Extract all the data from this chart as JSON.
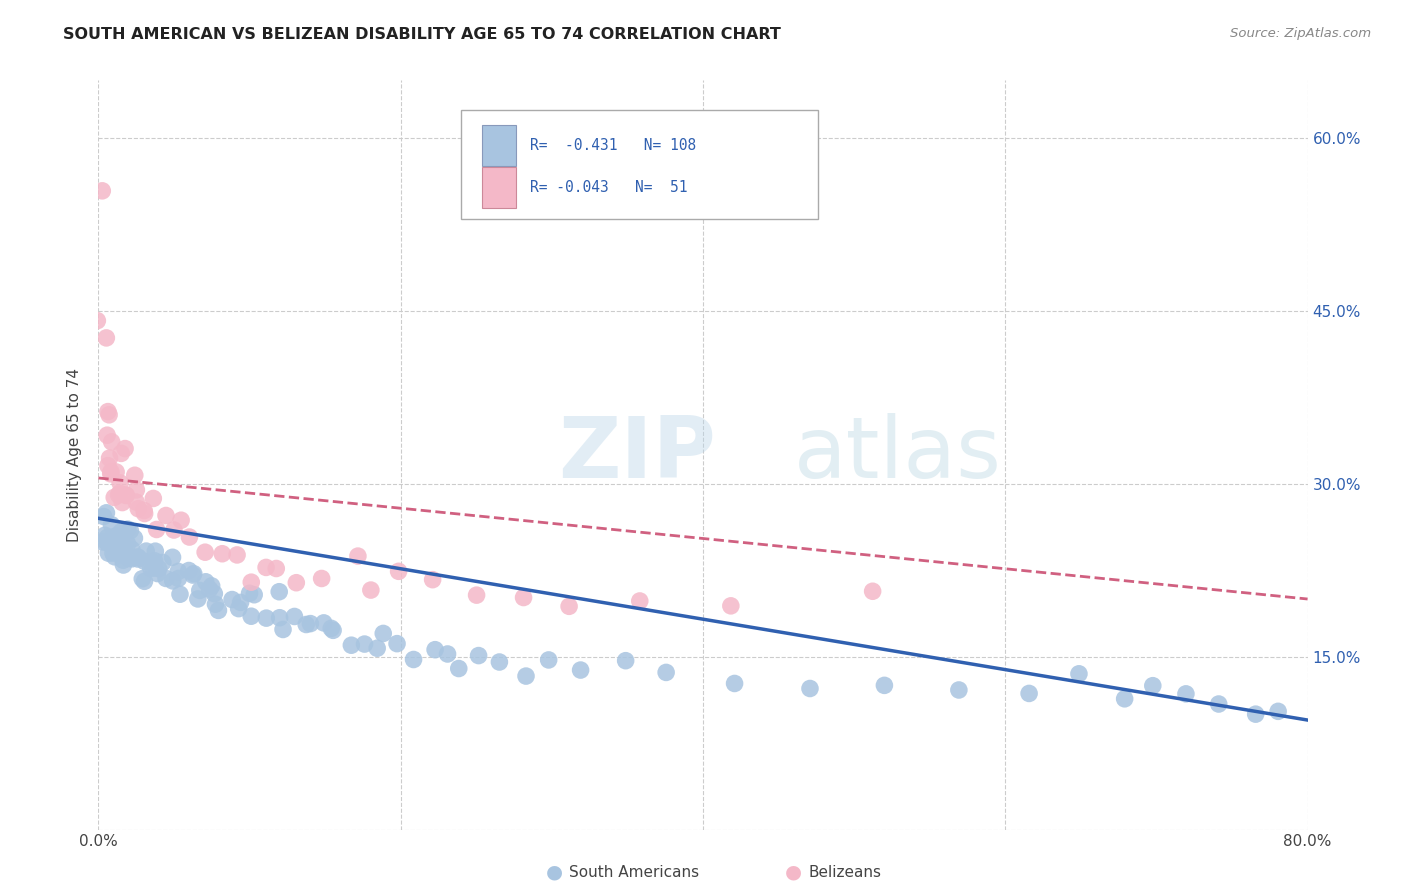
{
  "title": "SOUTH AMERICAN VS BELIZEAN DISABILITY AGE 65 TO 74 CORRELATION CHART",
  "source": "Source: ZipAtlas.com",
  "ylabel": "Disability Age 65 to 74",
  "xlim": [
    0.0,
    0.8
  ],
  "ylim": [
    0.0,
    0.65
  ],
  "y_ticks": [
    0.0,
    0.15,
    0.3,
    0.45,
    0.6
  ],
  "y_tick_labels_right": [
    "",
    "15.0%",
    "30.0%",
    "45.0%",
    "60.0%"
  ],
  "grid_color": "#cccccc",
  "background_color": "#ffffff",
  "sa_color": "#a8c4e0",
  "bz_color": "#f4b8c8",
  "trendline_sa_color": "#3060b0",
  "trendline_bz_color": "#d06080",
  "r_sa": -0.431,
  "n_sa": 108,
  "r_bz": -0.043,
  "n_bz": 51,
  "watermark_zip": "ZIP",
  "watermark_atlas": "atlas",
  "legend_sa_label": "South Americans",
  "legend_bz_label": "Belizeans",
  "sa_x": [
    0.002,
    0.003,
    0.004,
    0.005,
    0.005,
    0.006,
    0.007,
    0.007,
    0.008,
    0.009,
    0.01,
    0.01,
    0.011,
    0.011,
    0.012,
    0.012,
    0.013,
    0.014,
    0.014,
    0.015,
    0.015,
    0.016,
    0.017,
    0.017,
    0.018,
    0.019,
    0.02,
    0.02,
    0.022,
    0.023,
    0.024,
    0.025,
    0.026,
    0.027,
    0.028,
    0.03,
    0.031,
    0.032,
    0.033,
    0.034,
    0.035,
    0.036,
    0.038,
    0.04,
    0.041,
    0.042,
    0.044,
    0.046,
    0.048,
    0.05,
    0.052,
    0.054,
    0.056,
    0.058,
    0.06,
    0.063,
    0.065,
    0.068,
    0.07,
    0.072,
    0.075,
    0.078,
    0.08,
    0.083,
    0.086,
    0.09,
    0.093,
    0.097,
    0.1,
    0.105,
    0.11,
    0.115,
    0.12,
    0.125,
    0.13,
    0.135,
    0.14,
    0.15,
    0.155,
    0.16,
    0.168,
    0.175,
    0.18,
    0.19,
    0.2,
    0.21,
    0.22,
    0.23,
    0.24,
    0.25,
    0.265,
    0.28,
    0.3,
    0.32,
    0.35,
    0.38,
    0.42,
    0.47,
    0.52,
    0.57,
    0.62,
    0.65,
    0.68,
    0.7,
    0.72,
    0.74,
    0.76,
    0.78
  ],
  "sa_y": [
    0.27,
    0.25,
    0.265,
    0.24,
    0.255,
    0.26,
    0.245,
    0.25,
    0.24,
    0.255,
    0.245,
    0.26,
    0.25,
    0.255,
    0.24,
    0.26,
    0.25,
    0.245,
    0.255,
    0.24,
    0.26,
    0.245,
    0.255,
    0.25,
    0.24,
    0.245,
    0.235,
    0.25,
    0.24,
    0.245,
    0.23,
    0.24,
    0.235,
    0.245,
    0.225,
    0.235,
    0.24,
    0.23,
    0.225,
    0.235,
    0.23,
    0.225,
    0.24,
    0.22,
    0.235,
    0.225,
    0.23,
    0.22,
    0.225,
    0.215,
    0.225,
    0.22,
    0.21,
    0.22,
    0.215,
    0.205,
    0.215,
    0.205,
    0.21,
    0.2,
    0.21,
    0.2,
    0.21,
    0.195,
    0.2,
    0.195,
    0.19,
    0.2,
    0.185,
    0.195,
    0.185,
    0.19,
    0.18,
    0.19,
    0.18,
    0.175,
    0.18,
    0.175,
    0.17,
    0.175,
    0.165,
    0.17,
    0.16,
    0.165,
    0.16,
    0.155,
    0.155,
    0.15,
    0.145,
    0.15,
    0.145,
    0.14,
    0.145,
    0.135,
    0.14,
    0.13,
    0.135,
    0.128,
    0.122,
    0.118,
    0.115,
    0.112,
    0.11,
    0.118,
    0.112,
    0.105,
    0.102,
    0.098
  ],
  "bz_x": [
    0.002,
    0.003,
    0.004,
    0.004,
    0.005,
    0.005,
    0.006,
    0.007,
    0.008,
    0.009,
    0.01,
    0.011,
    0.011,
    0.012,
    0.013,
    0.014,
    0.015,
    0.016,
    0.018,
    0.019,
    0.02,
    0.022,
    0.024,
    0.026,
    0.028,
    0.03,
    0.033,
    0.036,
    0.04,
    0.044,
    0.048,
    0.055,
    0.06,
    0.07,
    0.08,
    0.09,
    0.1,
    0.11,
    0.12,
    0.135,
    0.15,
    0.165,
    0.18,
    0.2,
    0.22,
    0.25,
    0.28,
    0.31,
    0.36,
    0.42,
    0.51
  ],
  "bz_y": [
    0.56,
    0.44,
    0.43,
    0.36,
    0.355,
    0.34,
    0.335,
    0.32,
    0.315,
    0.31,
    0.3,
    0.295,
    0.34,
    0.315,
    0.29,
    0.285,
    0.33,
    0.31,
    0.28,
    0.295,
    0.29,
    0.305,
    0.28,
    0.29,
    0.275,
    0.28,
    0.265,
    0.28,
    0.26,
    0.275,
    0.255,
    0.268,
    0.26,
    0.235,
    0.24,
    0.225,
    0.235,
    0.22,
    0.23,
    0.22,
    0.215,
    0.22,
    0.215,
    0.218,
    0.21,
    0.2,
    0.205,
    0.195,
    0.185,
    0.195,
    0.205
  ],
  "sa_trend_x": [
    0.0,
    0.8
  ],
  "sa_trend_y": [
    0.27,
    0.095
  ],
  "bz_trend_x": [
    0.0,
    0.8
  ],
  "bz_trend_y": [
    0.305,
    0.2
  ]
}
